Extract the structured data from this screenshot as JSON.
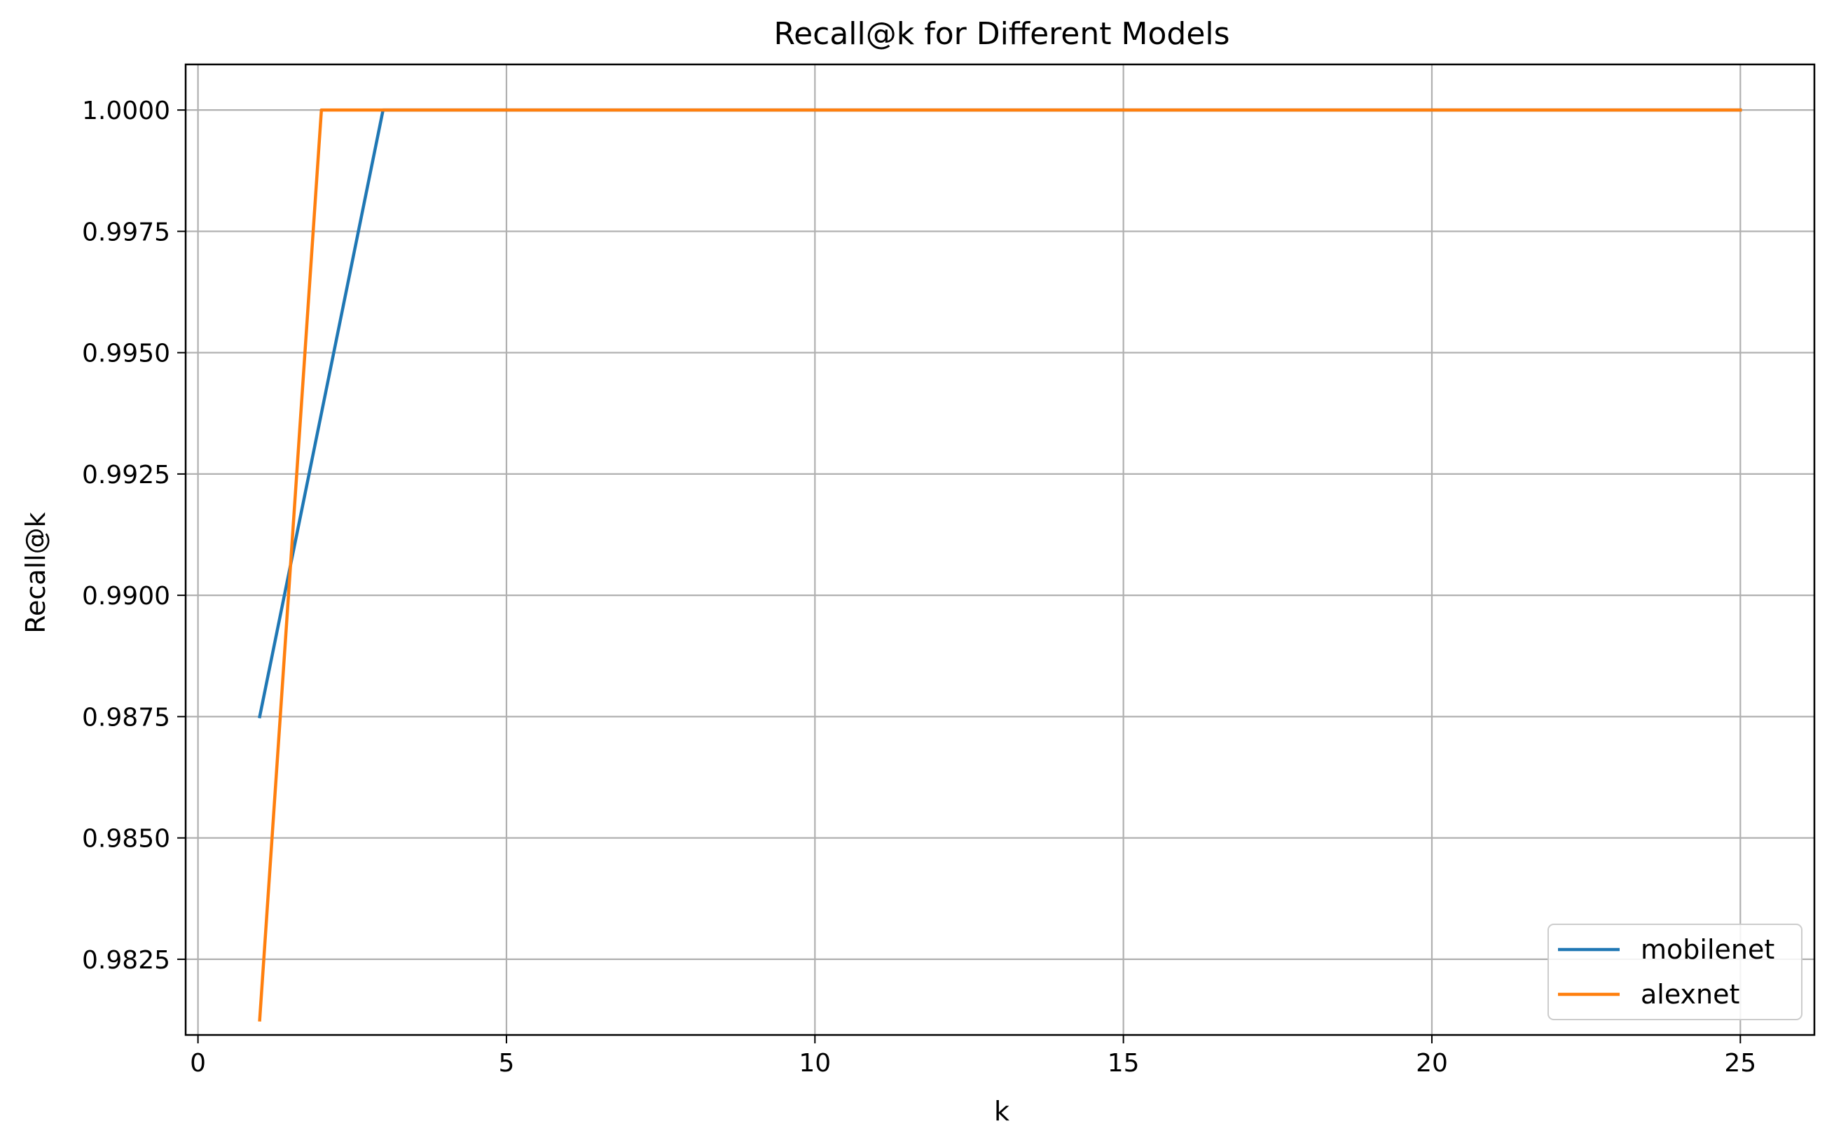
{
  "chart_data": {
    "type": "line",
    "title": "Recall@k for Different Models",
    "xlabel": "k",
    "ylabel": "Recall@k",
    "xlim": [
      -0.2,
      26.2
    ],
    "ylim": [
      0.98094,
      1.00094
    ],
    "xticks": [
      0,
      5,
      10,
      15,
      20,
      25
    ],
    "xtick_labels": [
      "0",
      "5",
      "10",
      "15",
      "20",
      "25"
    ],
    "yticks": [
      0.9825,
      0.985,
      0.9875,
      0.99,
      0.9925,
      0.995,
      0.9975,
      1.0
    ],
    "ytick_labels": [
      "0.9825",
      "0.9850",
      "0.9875",
      "0.9900",
      "0.9925",
      "0.9950",
      "0.9975",
      "1.0000"
    ],
    "grid": true,
    "legend_position": "lower-right",
    "x": [
      1,
      2,
      3,
      4,
      5,
      6,
      7,
      8,
      9,
      10,
      11,
      12,
      13,
      14,
      15,
      16,
      17,
      18,
      19,
      20,
      21,
      22,
      23,
      24,
      25
    ],
    "series": [
      {
        "name": "mobilenet",
        "color": "#1f77b4",
        "values": [
          0.9875,
          0.99375,
          1,
          1,
          1,
          1,
          1,
          1,
          1,
          1,
          1,
          1,
          1,
          1,
          1,
          1,
          1,
          1,
          1,
          1,
          1,
          1,
          1,
          1,
          1
        ]
      },
      {
        "name": "alexnet",
        "color": "#ff7f0e",
        "values": [
          0.98125,
          1,
          1,
          1,
          1,
          1,
          1,
          1,
          1,
          1,
          1,
          1,
          1,
          1,
          1,
          1,
          1,
          1,
          1,
          1,
          1,
          1,
          1,
          1,
          1
        ]
      }
    ]
  }
}
